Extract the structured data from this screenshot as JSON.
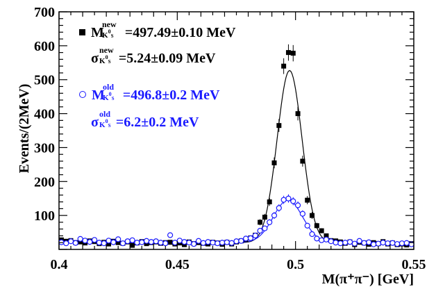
{
  "chart_data": {
    "type": "scatter",
    "xlabel": "M(π⁺π⁻) [GeV]",
    "ylabel": "Events/(2MeV)",
    "xlim": [
      0.4,
      0.55
    ],
    "ylim": [
      0,
      700
    ],
    "x_ticks": [
      "0.4",
      "0.45",
      "0.5",
      "0.55"
    ],
    "y_ticks": [
      "100",
      "200",
      "300",
      "400",
      "500",
      "600",
      "700"
    ],
    "log_scale": false,
    "grid": false,
    "legend_placement": "top-left",
    "colors": {
      "new": "#000000",
      "old": "#1a1aff",
      "axes": "#000000"
    },
    "series": [
      {
        "name": "new",
        "marker": "filled-square",
        "fit": {
          "mean_gev": 0.49749,
          "sigma_gev": 0.00524,
          "peak": 527,
          "background": 20
        },
        "x": [
          0.401,
          0.403,
          0.405,
          0.407,
          0.409,
          0.411,
          0.413,
          0.415,
          0.417,
          0.419,
          0.421,
          0.423,
          0.425,
          0.427,
          0.429,
          0.431,
          0.433,
          0.435,
          0.437,
          0.439,
          0.441,
          0.443,
          0.445,
          0.447,
          0.449,
          0.451,
          0.453,
          0.455,
          0.457,
          0.459,
          0.461,
          0.463,
          0.465,
          0.467,
          0.469,
          0.471,
          0.473,
          0.475,
          0.477,
          0.479,
          0.481,
          0.483,
          0.485,
          0.487,
          0.489,
          0.491,
          0.493,
          0.495,
          0.497,
          0.499,
          0.501,
          0.503,
          0.505,
          0.507,
          0.509,
          0.511,
          0.513,
          0.515,
          0.517,
          0.519,
          0.521,
          0.523,
          0.525,
          0.527,
          0.529,
          0.531,
          0.533,
          0.535,
          0.537,
          0.539,
          0.541,
          0.543,
          0.545,
          0.547,
          0.549
        ],
        "y": [
          28,
          24,
          26,
          20,
          22,
          19,
          25,
          23,
          17,
          21,
          16,
          24,
          20,
          18,
          22,
          12,
          19,
          23,
          17,
          20,
          22,
          18,
          20,
          21,
          16,
          19,
          14,
          22,
          17,
          20,
          18,
          16,
          21,
          19,
          15,
          21,
          16,
          22,
          25,
          29,
          34,
          42,
          80,
          95,
          140,
          255,
          365,
          540,
          580,
          578,
          400,
          260,
          145,
          100,
          70,
          55,
          40,
          26,
          25,
          22,
          18,
          22,
          14,
          21,
          19,
          15,
          20,
          17,
          23,
          16,
          19,
          14,
          16,
          13,
          17
        ]
      },
      {
        "name": "old",
        "marker": "open-circle",
        "fit": {
          "mean_gev": 0.4968,
          "sigma_gev": 0.0062,
          "peak": 145,
          "background": 20
        },
        "x": [
          0.401,
          0.403,
          0.405,
          0.407,
          0.409,
          0.411,
          0.413,
          0.415,
          0.417,
          0.419,
          0.421,
          0.423,
          0.425,
          0.427,
          0.429,
          0.431,
          0.433,
          0.435,
          0.437,
          0.439,
          0.441,
          0.443,
          0.445,
          0.447,
          0.449,
          0.451,
          0.453,
          0.455,
          0.457,
          0.459,
          0.461,
          0.463,
          0.465,
          0.467,
          0.469,
          0.471,
          0.473,
          0.475,
          0.477,
          0.479,
          0.481,
          0.483,
          0.485,
          0.487,
          0.489,
          0.491,
          0.493,
          0.495,
          0.497,
          0.499,
          0.501,
          0.503,
          0.505,
          0.507,
          0.509,
          0.511,
          0.513,
          0.515,
          0.517,
          0.519,
          0.521,
          0.523,
          0.525,
          0.527,
          0.529,
          0.531,
          0.533,
          0.535,
          0.537,
          0.539,
          0.541,
          0.543,
          0.545,
          0.547,
          0.549
        ],
        "y": [
          21,
          18,
          24,
          19,
          31,
          26,
          22,
          28,
          20,
          18,
          26,
          21,
          30,
          18,
          24,
          27,
          20,
          21,
          25,
          22,
          24,
          20,
          18,
          42,
          20,
          26,
          22,
          20,
          16,
          25,
          19,
          22,
          20,
          18,
          20,
          21,
          19,
          24,
          25,
          32,
          33,
          41,
          55,
          62,
          80,
          100,
          122,
          146,
          150,
          142,
          130,
          105,
          70,
          45,
          32,
          27,
          29,
          24,
          20,
          18,
          20,
          22,
          17,
          25,
          19,
          21,
          15,
          17,
          20,
          18,
          19,
          16,
          18,
          19,
          15
        ]
      }
    ]
  },
  "legend": {
    "new_mass_value": "=497.49±0.10 MeV",
    "new_width_value": "=5.24±0.09 MeV",
    "old_mass_value": "=496.8±0.2 MeV",
    "old_width_value": "=6.2±0.2 MeV",
    "label_new": "new",
    "label_old": "old",
    "mass_symbol": "M",
    "width_symbol": "σ",
    "particle_k": "K",
    "particle_zero": "0",
    "particle_s": "S"
  }
}
